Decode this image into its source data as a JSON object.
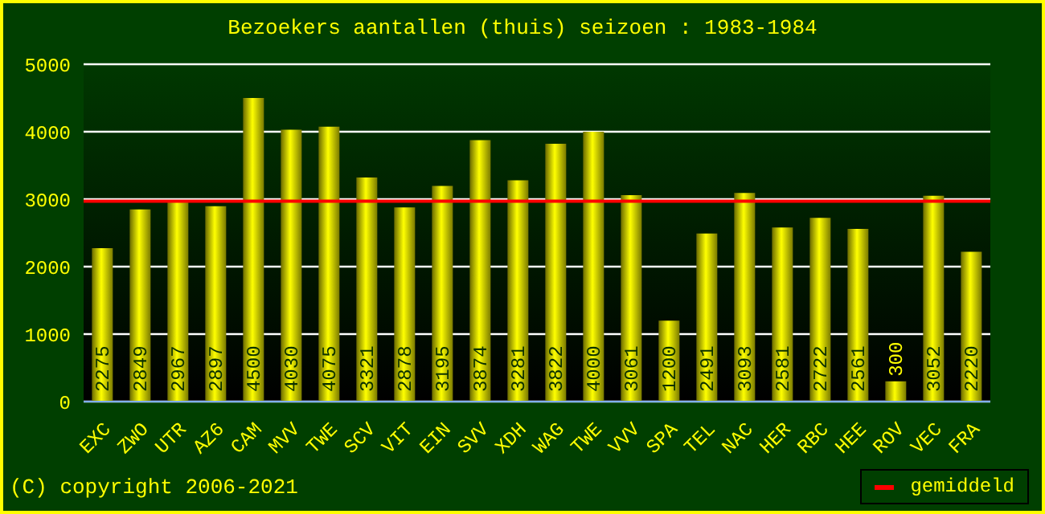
{
  "chart_data": {
    "type": "bar",
    "title": "Bezoekers aantallen (thuis) seizoen : 1983-1984",
    "categories": [
      "EXC",
      "ZWO",
      "UTR",
      "AZ6",
      "CAM",
      "MVV",
      "TWE",
      "SCV",
      "VIT",
      "EIN",
      "SVV",
      "XDH",
      "WAG",
      "TWE",
      "VVV",
      "SPA",
      "TEL",
      "NAC",
      "HER",
      "RBC",
      "HEE",
      "ROV",
      "VEC",
      "FRA"
    ],
    "values": [
      2275,
      2849,
      2967,
      2897,
      4500,
      4030,
      4075,
      3321,
      2878,
      3195,
      3874,
      3281,
      3822,
      4000,
      3061,
      1200,
      2491,
      3093,
      2581,
      2722,
      2561,
      300,
      3052,
      2220
    ],
    "color": "#ffff00",
    "ylim": [
      0,
      5000
    ],
    "yticks": [
      0,
      1000,
      2000,
      3000,
      4000,
      5000
    ],
    "grid": "y",
    "data_labels": true,
    "ref_lines": [
      {
        "axis": "y",
        "value": 2969,
        "label": "gemiddeld",
        "color": "#ff0000"
      }
    ],
    "legend": "bottom right",
    "annotations": [
      "(C) copyright 2006-2021"
    ]
  }
}
